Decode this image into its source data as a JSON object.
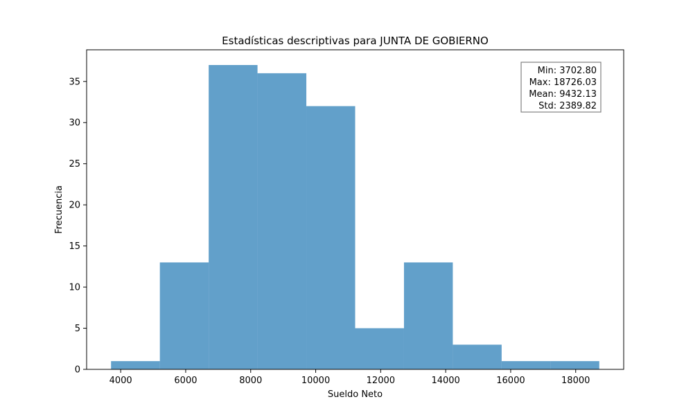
{
  "chart_data": {
    "type": "bar",
    "subtype": "histogram",
    "title": "Estadísticas descriptivas para JUNTA DE GOBIERNO",
    "xlabel": "Sueldo Neto",
    "ylabel": "Frecuencia",
    "bin_edges": [
      3702.8,
      5205.12,
      6707.44,
      8209.77,
      9712.09,
      11214.42,
      12716.74,
      14219.06,
      15721.38,
      17223.71,
      18726.03
    ],
    "values": [
      1,
      13,
      37,
      36,
      32,
      5,
      13,
      3,
      1,
      1
    ],
    "xlim": [
      2951.64,
      19477.19
    ],
    "ylim": [
      0,
      38.85
    ],
    "xticks": [
      4000,
      6000,
      8000,
      10000,
      12000,
      14000,
      16000,
      18000
    ],
    "yticks": [
      0,
      5,
      10,
      15,
      20,
      25,
      30,
      35
    ],
    "grid": false,
    "bar_color": "#1f77b4",
    "bar_opacity": 0.7,
    "stats_box": {
      "placement": "top-right",
      "lines": [
        "Min: 3702.80",
        "Max: 18726.03",
        "Mean: 9432.13",
        "Std: 2389.82"
      ]
    }
  }
}
